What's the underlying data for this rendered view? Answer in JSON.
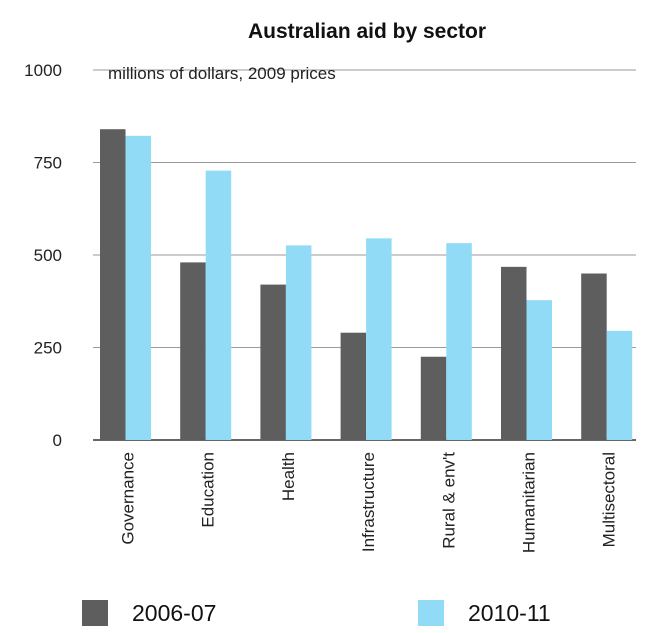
{
  "chart_data": {
    "type": "bar",
    "title": "Australian aid by sector",
    "subtitle": "millions of dollars, 2009 prices",
    "xlabel": "",
    "ylabel": "",
    "categories": [
      "Governance",
      "Education",
      "Health",
      "Infrastructure",
      "Rural & env't",
      "Humanitarian",
      "Multisectoral"
    ],
    "series": [
      {
        "name": "2006-07",
        "values": [
          840,
          480,
          420,
          290,
          225,
          468,
          450
        ],
        "color": "#5e5e5e"
      },
      {
        "name": "2010-11",
        "values": [
          822,
          728,
          526,
          545,
          532,
          378,
          295
        ],
        "color": "#91dbf7"
      }
    ],
    "ylim": [
      0,
      1000
    ],
    "yticks": [
      0,
      250,
      500,
      750,
      1000
    ],
    "grid": true,
    "legend_position": "bottom"
  }
}
